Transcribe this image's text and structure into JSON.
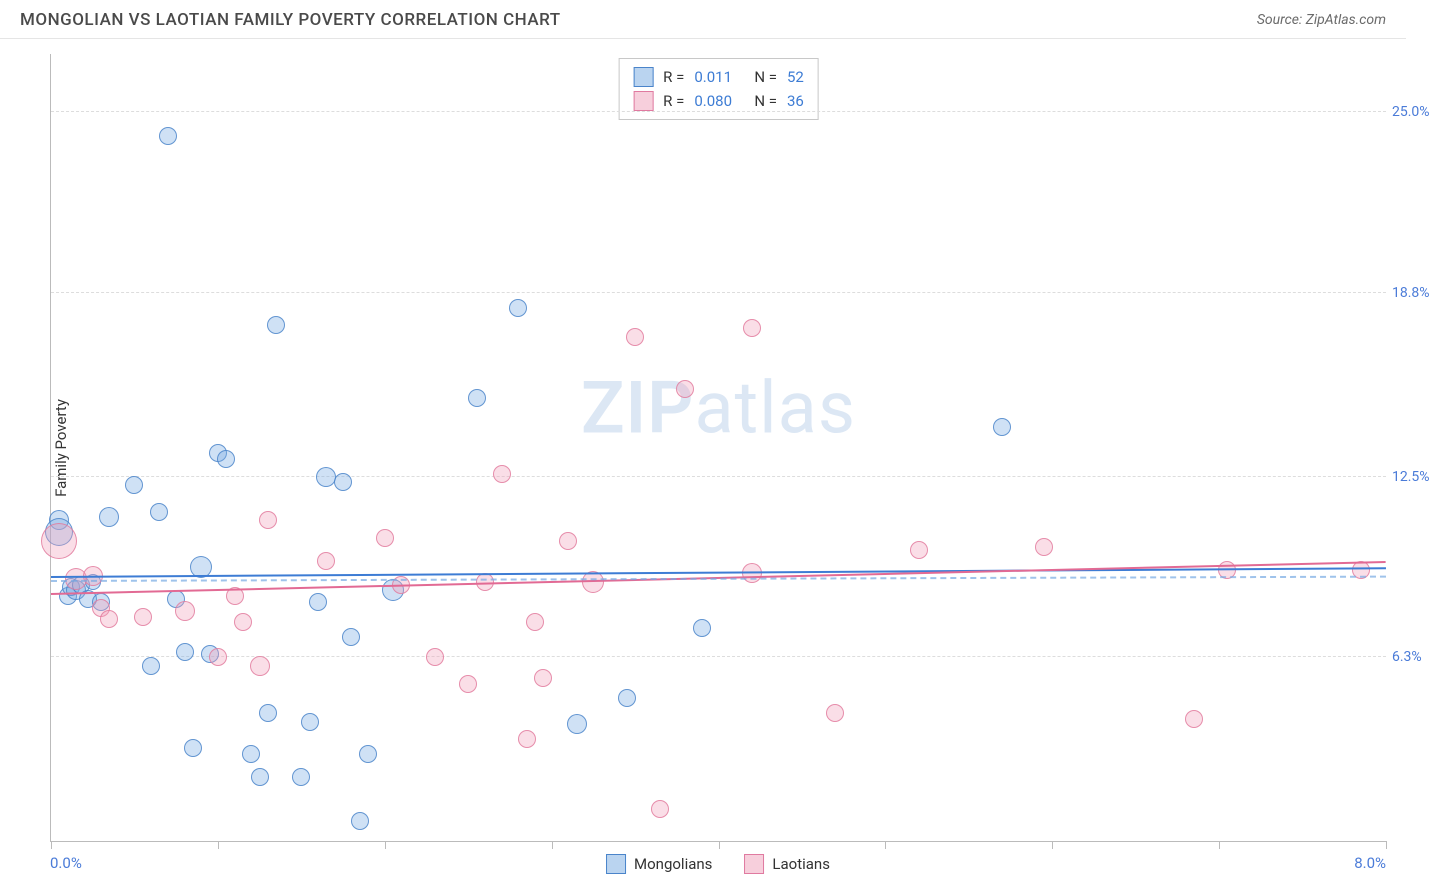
{
  "header": {
    "title": "MONGOLIAN VS LAOTIAN FAMILY POVERTY CORRELATION CHART",
    "source_prefix": "Source: ",
    "source_name": "ZipAtlas.com"
  },
  "chart": {
    "type": "scatter",
    "ylabel": "Family Poverty",
    "xlim": [
      0.0,
      8.0
    ],
    "ylim": [
      0.0,
      27.0
    ],
    "xlim_labels": [
      "0.0%",
      "8.0%"
    ],
    "y_gridlines": [
      {
        "value": 6.3,
        "label": "6.3%"
      },
      {
        "value": 12.5,
        "label": "12.5%"
      },
      {
        "value": 18.8,
        "label": "18.8%"
      },
      {
        "value": 25.0,
        "label": "25.0%"
      }
    ],
    "x_ticks": [
      0.0,
      1.0,
      2.0,
      3.0,
      4.0,
      5.0,
      6.0,
      7.0,
      8.0
    ],
    "background_color": "#ffffff",
    "grid_color": "#dddddd",
    "series": [
      {
        "name": "Mongolians",
        "color_fill": "rgba(118,170,226,0.35)",
        "color_stroke": "rgba(70,130,200,0.8)",
        "class": "blue",
        "trend": {
          "y_start": 9.1,
          "y_end": 9.4,
          "r": "0.011",
          "n": "52"
        },
        "points": [
          {
            "x": 0.05,
            "y": 11.0,
            "r": 10
          },
          {
            "x": 0.05,
            "y": 10.6,
            "r": 14
          },
          {
            "x": 0.1,
            "y": 8.4,
            "r": 9
          },
          {
            "x": 0.12,
            "y": 8.7,
            "r": 9
          },
          {
            "x": 0.15,
            "y": 8.6,
            "r": 10
          },
          {
            "x": 0.18,
            "y": 8.8,
            "r": 9
          },
          {
            "x": 0.22,
            "y": 8.3,
            "r": 9
          },
          {
            "x": 0.25,
            "y": 8.9,
            "r": 8
          },
          {
            "x": 0.3,
            "y": 8.2,
            "r": 9
          },
          {
            "x": 0.35,
            "y": 11.1,
            "r": 10
          },
          {
            "x": 0.5,
            "y": 12.2,
            "r": 9
          },
          {
            "x": 0.6,
            "y": 6.0,
            "r": 9
          },
          {
            "x": 0.65,
            "y": 11.3,
            "r": 9
          },
          {
            "x": 0.7,
            "y": 24.2,
            "r": 9
          },
          {
            "x": 0.75,
            "y": 8.3,
            "r": 9
          },
          {
            "x": 0.8,
            "y": 6.5,
            "r": 9
          },
          {
            "x": 0.85,
            "y": 3.2,
            "r": 9
          },
          {
            "x": 0.9,
            "y": 9.4,
            "r": 11
          },
          {
            "x": 0.95,
            "y": 6.4,
            "r": 9
          },
          {
            "x": 1.0,
            "y": 13.3,
            "r": 9
          },
          {
            "x": 1.05,
            "y": 13.1,
            "r": 9
          },
          {
            "x": 1.2,
            "y": 3.0,
            "r": 9
          },
          {
            "x": 1.25,
            "y": 2.2,
            "r": 9
          },
          {
            "x": 1.3,
            "y": 4.4,
            "r": 9
          },
          {
            "x": 1.35,
            "y": 17.7,
            "r": 9
          },
          {
            "x": 1.5,
            "y": 2.2,
            "r": 9
          },
          {
            "x": 1.55,
            "y": 4.1,
            "r": 9
          },
          {
            "x": 1.6,
            "y": 8.2,
            "r": 9
          },
          {
            "x": 1.65,
            "y": 12.5,
            "r": 10
          },
          {
            "x": 1.75,
            "y": 12.3,
            "r": 9
          },
          {
            "x": 1.8,
            "y": 7.0,
            "r": 9
          },
          {
            "x": 1.85,
            "y": 0.7,
            "r": 9
          },
          {
            "x": 1.9,
            "y": 3.0,
            "r": 9
          },
          {
            "x": 2.05,
            "y": 8.6,
            "r": 11
          },
          {
            "x": 2.55,
            "y": 15.2,
            "r": 9
          },
          {
            "x": 2.8,
            "y": 18.3,
            "r": 9
          },
          {
            "x": 3.15,
            "y": 4.0,
            "r": 10
          },
          {
            "x": 3.45,
            "y": 4.9,
            "r": 9
          },
          {
            "x": 3.9,
            "y": 7.3,
            "r": 9
          },
          {
            "x": 5.7,
            "y": 14.2,
            "r": 9
          }
        ]
      },
      {
        "name": "Laotians",
        "color_fill": "rgba(240,160,185,0.35)",
        "color_stroke": "rgba(225,120,155,0.8)",
        "class": "pink",
        "trend": {
          "y_start": 8.5,
          "y_end": 9.6,
          "r": "0.080",
          "n": "36"
        },
        "points": [
          {
            "x": 0.05,
            "y": 10.3,
            "r": 18
          },
          {
            "x": 0.15,
            "y": 9.0,
            "r": 11
          },
          {
            "x": 0.25,
            "y": 9.1,
            "r": 10
          },
          {
            "x": 0.3,
            "y": 8.0,
            "r": 9
          },
          {
            "x": 0.35,
            "y": 7.6,
            "r": 9
          },
          {
            "x": 0.55,
            "y": 7.7,
            "r": 9
          },
          {
            "x": 0.8,
            "y": 7.9,
            "r": 10
          },
          {
            "x": 1.0,
            "y": 6.3,
            "r": 9
          },
          {
            "x": 1.1,
            "y": 8.4,
            "r": 9
          },
          {
            "x": 1.15,
            "y": 7.5,
            "r": 9
          },
          {
            "x": 1.25,
            "y": 6.0,
            "r": 10
          },
          {
            "x": 1.3,
            "y": 11.0,
            "r": 9
          },
          {
            "x": 1.65,
            "y": 9.6,
            "r": 9
          },
          {
            "x": 2.0,
            "y": 10.4,
            "r": 9
          },
          {
            "x": 2.1,
            "y": 8.8,
            "r": 9
          },
          {
            "x": 2.3,
            "y": 6.3,
            "r": 9
          },
          {
            "x": 2.5,
            "y": 5.4,
            "r": 9
          },
          {
            "x": 2.6,
            "y": 8.9,
            "r": 9
          },
          {
            "x": 2.7,
            "y": 12.6,
            "r": 9
          },
          {
            "x": 2.85,
            "y": 3.5,
            "r": 9
          },
          {
            "x": 2.9,
            "y": 7.5,
            "r": 9
          },
          {
            "x": 2.95,
            "y": 5.6,
            "r": 9
          },
          {
            "x": 3.1,
            "y": 10.3,
            "r": 9
          },
          {
            "x": 3.25,
            "y": 8.9,
            "r": 11
          },
          {
            "x": 3.5,
            "y": 17.3,
            "r": 9
          },
          {
            "x": 3.65,
            "y": 1.1,
            "r": 9
          },
          {
            "x": 3.8,
            "y": 15.5,
            "r": 9
          },
          {
            "x": 4.2,
            "y": 17.6,
            "r": 9
          },
          {
            "x": 4.2,
            "y": 9.2,
            "r": 10
          },
          {
            "x": 4.7,
            "y": 4.4,
            "r": 9
          },
          {
            "x": 5.2,
            "y": 10.0,
            "r": 9
          },
          {
            "x": 5.95,
            "y": 10.1,
            "r": 9
          },
          {
            "x": 6.85,
            "y": 4.2,
            "r": 9
          },
          {
            "x": 7.05,
            "y": 9.3,
            "r": 9
          },
          {
            "x": 7.85,
            "y": 9.3,
            "r": 9
          }
        ]
      }
    ],
    "stats_box": {
      "rows": [
        {
          "swatch": "blue",
          "r_label": "R =",
          "r_val": "0.011",
          "n_label": "N =",
          "n_val": "52"
        },
        {
          "swatch": "pink",
          "r_label": "R =",
          "r_val": "0.080",
          "n_label": "N =",
          "n_val": "36"
        }
      ]
    },
    "bottom_legend": [
      {
        "swatch": "blue",
        "label": "Mongolians"
      },
      {
        "swatch": "pink",
        "label": "Laotians"
      }
    ],
    "watermark": {
      "zip": "ZIP",
      "atlas": "atlas"
    }
  }
}
